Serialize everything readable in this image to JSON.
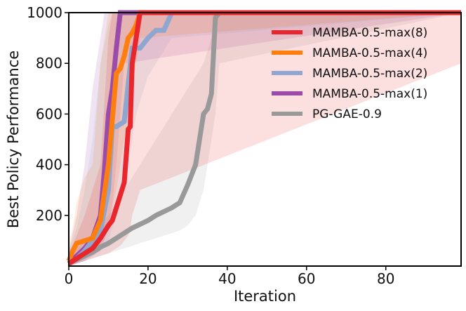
{
  "chart_data": {
    "type": "line",
    "title": "",
    "xlabel": "Iteration",
    "ylabel": "Best Policy Performance",
    "xlim": [
      0,
      99
    ],
    "ylim": [
      0,
      1000
    ],
    "xticks": [
      0,
      20,
      40,
      60,
      80
    ],
    "yticks": [
      200,
      400,
      600,
      800,
      1000
    ],
    "grid": false,
    "legend_position": "top-right",
    "series": [
      {
        "name": "MAMBA-0.5-max(8)",
        "color": "#e8262b",
        "x": [
          0,
          2,
          4,
          6,
          8,
          10,
          11,
          12,
          13,
          14,
          15,
          15.5,
          16,
          17,
          18,
          99
        ],
        "y": [
          10,
          30,
          50,
          70,
          110,
          160,
          180,
          230,
          280,
          330,
          540,
          550,
          800,
          900,
          1000,
          1000
        ],
        "band_upper": [
          50,
          120,
          200,
          300,
          400,
          900,
          1000,
          1000,
          1000,
          1000,
          1000,
          1000,
          1000,
          1000,
          1000,
          1000
        ],
        "band_lower": [
          0,
          10,
          20,
          30,
          40,
          50,
          60,
          70,
          80,
          100,
          120,
          150,
          200,
          250,
          300,
          800
        ]
      },
      {
        "name": "MAMBA-0.5-max(4)",
        "color": "#ff7f0e",
        "x": [
          0,
          1,
          2,
          4,
          6,
          8,
          10,
          12,
          13,
          14,
          15,
          16,
          17,
          18,
          99
        ],
        "y": [
          20,
          60,
          90,
          100,
          110,
          180,
          400,
          760,
          780,
          830,
          900,
          920,
          950,
          1000,
          1000
        ],
        "band_upper": [
          80,
          150,
          250,
          350,
          400,
          800,
          1000,
          1000,
          1000,
          1000,
          1000,
          1000,
          1000,
          1000,
          1000
        ],
        "band_lower": [
          0,
          10,
          30,
          50,
          60,
          80,
          150,
          300,
          400,
          500,
          600,
          700,
          800,
          900,
          1000
        ]
      },
      {
        "name": "MAMBA-0.5-max(2)",
        "color": "#8fa7d0",
        "x": [
          0,
          2,
          4,
          6,
          8,
          10,
          11,
          12,
          13,
          14,
          15,
          16,
          17,
          18,
          19,
          20,
          22,
          24,
          26,
          99
        ],
        "y": [
          10,
          30,
          60,
          100,
          140,
          300,
          550,
          550,
          560,
          570,
          720,
          860,
          860,
          860,
          880,
          900,
          930,
          930,
          1000,
          1000
        ],
        "band_upper": [
          60,
          150,
          300,
          500,
          800,
          950,
          1000,
          1000,
          1000,
          1000,
          1000,
          1000,
          1000,
          1000,
          1000,
          1000,
          1000,
          1000,
          1000,
          1000
        ],
        "band_lower": [
          0,
          10,
          20,
          40,
          60,
          100,
          150,
          200,
          250,
          300,
          400,
          500,
          600,
          650,
          700,
          750,
          800,
          850,
          900,
          1000
        ]
      },
      {
        "name": "MAMBA-0.5-max(1)",
        "color": "#9a4ca8",
        "x": [
          0,
          2,
          4,
          6,
          8,
          9,
          10,
          11,
          12,
          13,
          14,
          99
        ],
        "y": [
          10,
          40,
          70,
          110,
          200,
          380,
          600,
          700,
          860,
          1000,
          1000,
          1000
        ],
        "band_upper": [
          60,
          200,
          400,
          700,
          900,
          1000,
          1000,
          1000,
          1000,
          1000,
          1000,
          1000
        ],
        "band_lower": [
          0,
          10,
          20,
          40,
          60,
          100,
          150,
          250,
          400,
          600,
          800,
          1000
        ]
      },
      {
        "name": "PG-GAE-0.9",
        "color": "#999999",
        "x": [
          0,
          2,
          4,
          6,
          8,
          10,
          12,
          14,
          16,
          18,
          20,
          22,
          24,
          26,
          28,
          30,
          32,
          34,
          35,
          36,
          37,
          38,
          99
        ],
        "y": [
          10,
          25,
          40,
          55,
          75,
          90,
          110,
          130,
          150,
          165,
          180,
          200,
          215,
          230,
          250,
          320,
          400,
          600,
          620,
          680,
          980,
          1000,
          1000
        ],
        "band_upper": [
          40,
          70,
          100,
          130,
          160,
          200,
          250,
          300,
          350,
          400,
          450,
          500,
          550,
          600,
          650,
          700,
          750,
          800,
          850,
          900,
          1000,
          1000,
          1000
        ],
        "band_lower": [
          0,
          10,
          20,
          30,
          40,
          50,
          60,
          70,
          80,
          90,
          100,
          110,
          120,
          130,
          140,
          160,
          200,
          300,
          400,
          500,
          600,
          800,
          1000
        ]
      }
    ]
  }
}
